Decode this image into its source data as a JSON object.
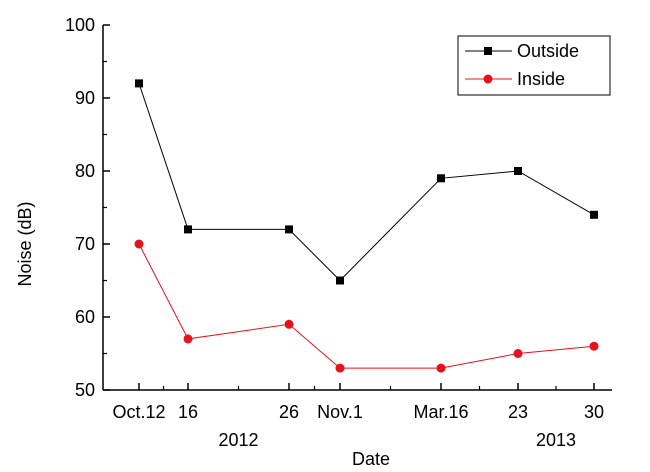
{
  "chart_data": {
    "type": "line",
    "title": "",
    "xlabel": "Date",
    "ylabel": "Noise (dB)",
    "ylim": [
      50,
      100
    ],
    "yticks": [
      50,
      60,
      70,
      80,
      90,
      100
    ],
    "categories": [
      "Oct.12",
      "16",
      "26",
      "Nov.1",
      "Mar.16",
      "23",
      "30"
    ],
    "year_labels": [
      {
        "text": "2012",
        "between": [
          1,
          2
        ]
      },
      {
        "text": "2013",
        "between": [
          5,
          6
        ]
      }
    ],
    "legend_position": "top-right",
    "series": [
      {
        "name": "Outside",
        "marker": "square",
        "color": "#000000",
        "values": [
          92,
          72,
          72,
          65,
          79,
          80,
          74
        ]
      },
      {
        "name": "Inside",
        "marker": "circle",
        "color": "#e8101a",
        "values": [
          70,
          57,
          59,
          53,
          53,
          55,
          56
        ]
      }
    ]
  }
}
